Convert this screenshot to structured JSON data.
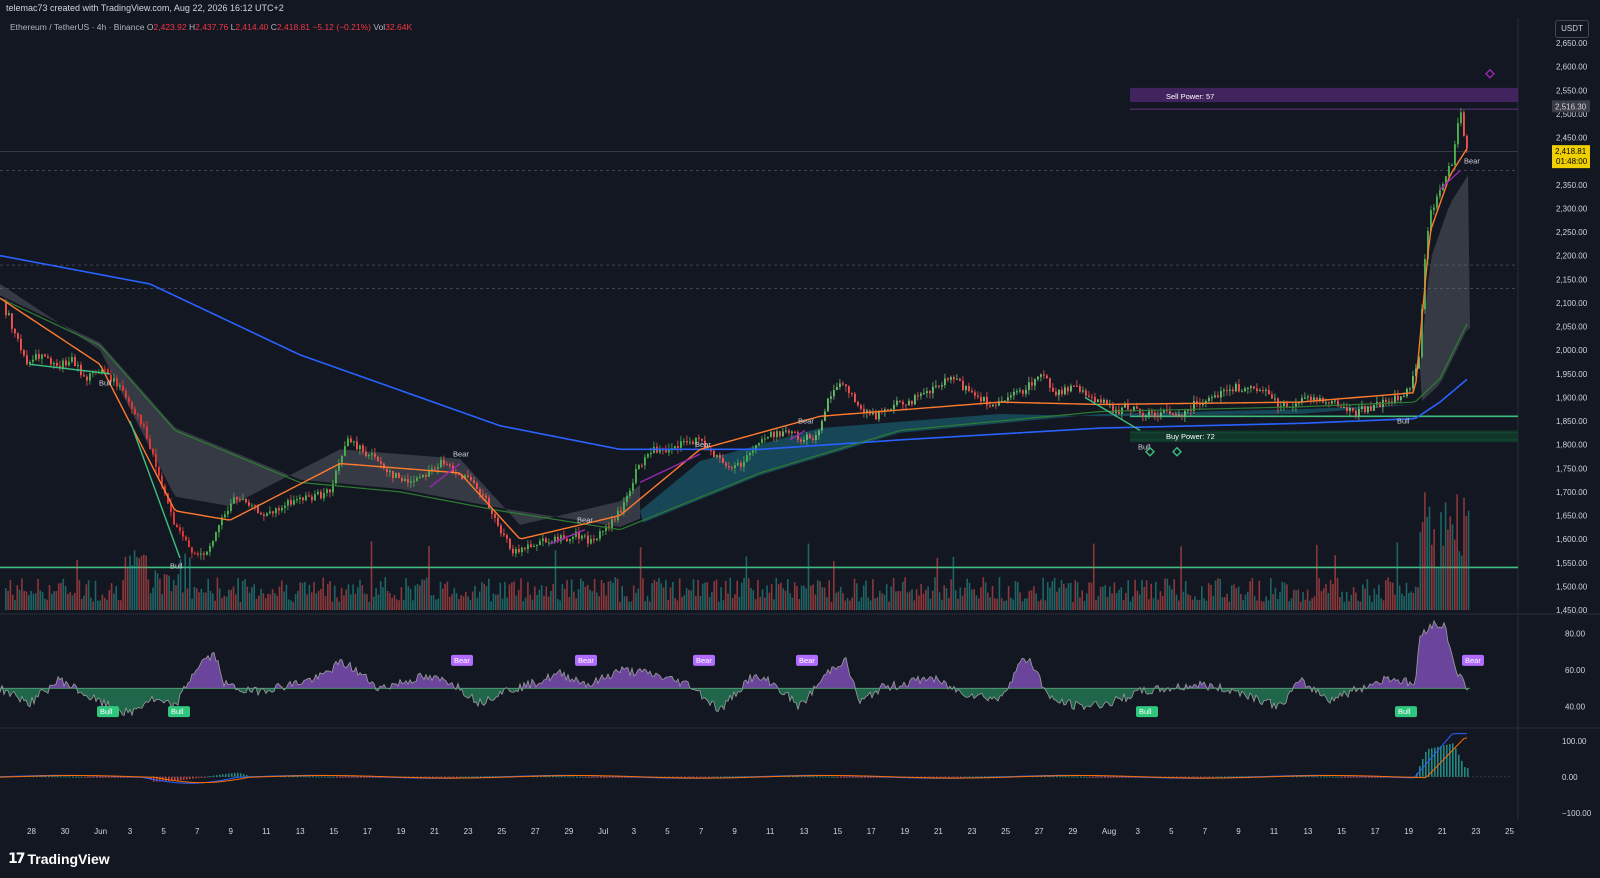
{
  "header": {
    "credit": "telemac73 created with TradingView.com, Aug 22, 2026 16:12 UTC+2"
  },
  "symbol": {
    "name": "Ethereum / TetherUS · 4h · Binance",
    "open_label": "O",
    "open": "2,423.92",
    "high_label": "H",
    "high": "2,437.76",
    "low_label": "L",
    "low": "2,414.40",
    "close_label": "C",
    "close": "2,418.81",
    "change": "−5.12 (−0.21%)",
    "vol_label": "Vol",
    "vol": "32.64K",
    "currency": "USDT"
  },
  "colors": {
    "background": "#131722",
    "bull": "#26a69a",
    "bear": "#ef5350",
    "ema_fast": "#ff7b2e",
    "ema_mid": "#2e7d32",
    "ema_slow": "#2962ff",
    "purple": "#9c27b0",
    "highlight": "#f0d000"
  },
  "annotations": {
    "sell_power": "Sell Power: 57",
    "buy_power": "Buy Power: 72",
    "bull": "Bull",
    "bear": "Bear"
  },
  "price_badges": {
    "last_high": "2,516.30",
    "current": "2,418.81",
    "countdown": "01:48:00"
  },
  "footer": {
    "brand": "TradingView"
  },
  "chart_data": [
    {
      "type": "candlestick",
      "pane": "price",
      "y_ticks": [
        "2,650.00",
        "2,600.00",
        "2,550.00",
        "2,500.00",
        "2,450.00",
        "2,400.00",
        "2,350.00",
        "2,300.00",
        "2,250.00",
        "2,200.00",
        "2,150.00",
        "2,100.00",
        "2,050.00",
        "2,000.00",
        "1,950.00",
        "1,900.00",
        "1,850.00",
        "1,800.00",
        "1,750.00",
        "1,700.00",
        "1,650.00",
        "1,600.00",
        "1,550.00",
        "1,500.00",
        "1,450.00"
      ],
      "ylim": [
        1450,
        2650
      ],
      "x_ticks": [
        "28",
        "30",
        "Jun",
        "3",
        "5",
        "7",
        "9",
        "11",
        "13",
        "15",
        "17",
        "19",
        "21",
        "23",
        "25",
        "27",
        "29",
        "Jul",
        "3",
        "5",
        "7",
        "9",
        "11",
        "13",
        "15",
        "17",
        "19",
        "21",
        "23",
        "25",
        "27",
        "29",
        "Aug",
        "3",
        "5",
        "7",
        "9",
        "11",
        "13",
        "15",
        "17",
        "19",
        "21",
        "23",
        "25"
      ],
      "anchors": [
        [
          0,
          2105
        ],
        [
          10,
          2060
        ],
        [
          25,
          1970
        ],
        [
          40,
          1990
        ],
        [
          55,
          1960
        ],
        [
          70,
          1980
        ],
        [
          85,
          1940
        ],
        [
          100,
          1960
        ],
        [
          120,
          1920
        ],
        [
          140,
          1850
        ],
        [
          160,
          1720
        ],
        [
          175,
          1620
        ],
        [
          190,
          1580
        ],
        [
          205,
          1560
        ],
        [
          220,
          1640
        ],
        [
          235,
          1690
        ],
        [
          250,
          1665
        ],
        [
          270,
          1650
        ],
        [
          290,
          1680
        ],
        [
          310,
          1690
        ],
        [
          330,
          1700
        ],
        [
          345,
          1810
        ],
        [
          360,
          1790
        ],
        [
          375,
          1770
        ],
        [
          390,
          1740
        ],
        [
          405,
          1720
        ],
        [
          420,
          1735
        ],
        [
          440,
          1760
        ],
        [
          455,
          1745
        ],
        [
          470,
          1720
        ],
        [
          485,
          1680
        ],
        [
          500,
          1610
        ],
        [
          515,
          1570
        ],
        [
          530,
          1590
        ],
        [
          545,
          1600
        ],
        [
          560,
          1600
        ],
        [
          575,
          1610
        ],
        [
          590,
          1595
        ],
        [
          605,
          1620
        ],
        [
          620,
          1660
        ],
        [
          635,
          1740
        ],
        [
          650,
          1790
        ],
        [
          665,
          1780
        ],
        [
          680,
          1800
        ],
        [
          695,
          1810
        ],
        [
          710,
          1790
        ],
        [
          725,
          1750
        ],
        [
          740,
          1760
        ],
        [
          755,
          1800
        ],
        [
          770,
          1820
        ],
        [
          785,
          1830
        ],
        [
          800,
          1810
        ],
        [
          815,
          1820
        ],
        [
          830,
          1910
        ],
        [
          845,
          1930
        ],
        [
          860,
          1870
        ],
        [
          875,
          1860
        ],
        [
          890,
          1880
        ],
        [
          905,
          1890
        ],
        [
          920,
          1900
        ],
        [
          935,
          1920
        ],
        [
          950,
          1940
        ],
        [
          965,
          1920
        ],
        [
          980,
          1900
        ],
        [
          995,
          1880
        ],
        [
          1010,
          1900
        ],
        [
          1025,
          1920
        ],
        [
          1040,
          1950
        ],
        [
          1055,
          1910
        ],
        [
          1070,
          1920
        ],
        [
          1085,
          1910
        ],
        [
          1100,
          1890
        ],
        [
          1115,
          1870
        ],
        [
          1130,
          1880
        ],
        [
          1145,
          1860
        ],
        [
          1160,
          1870
        ],
        [
          1175,
          1860
        ],
        [
          1190,
          1880
        ],
        [
          1205,
          1900
        ],
        [
          1220,
          1910
        ],
        [
          1235,
          1920
        ],
        [
          1250,
          1915
        ],
        [
          1265,
          1910
        ],
        [
          1280,
          1880
        ],
        [
          1295,
          1890
        ],
        [
          1310,
          1900
        ],
        [
          1325,
          1895
        ],
        [
          1340,
          1880
        ],
        [
          1355,
          1870
        ],
        [
          1370,
          1880
        ],
        [
          1385,
          1890
        ],
        [
          1400,
          1900
        ],
        [
          1410,
          1920
        ],
        [
          1418,
          1990
        ],
        [
          1424,
          2200
        ],
        [
          1430,
          2290
        ],
        [
          1438,
          2330
        ],
        [
          1446,
          2380
        ],
        [
          1452,
          2400
        ],
        [
          1456,
          2480
        ],
        [
          1460,
          2505
        ],
        [
          1464,
          2440
        ],
        [
          1468,
          2418
        ]
      ],
      "ema_fast": [
        [
          0,
          2110
        ],
        [
          100,
          1970
        ],
        [
          175,
          1660
        ],
        [
          230,
          1640
        ],
        [
          340,
          1760
        ],
        [
          460,
          1740
        ],
        [
          520,
          1600
        ],
        [
          620,
          1650
        ],
        [
          700,
          1790
        ],
        [
          820,
          1860
        ],
        [
          1000,
          1890
        ],
        [
          1100,
          1885
        ],
        [
          1300,
          1890
        ],
        [
          1415,
          1910
        ],
        [
          1430,
          2250
        ],
        [
          1450,
          2370
        ],
        [
          1468,
          2430
        ]
      ],
      "ema_mid": [
        [
          0,
          2110
        ],
        [
          100,
          2010
        ],
        [
          175,
          1830
        ],
        [
          300,
          1720
        ],
        [
          400,
          1700
        ],
        [
          500,
          1660
        ],
        [
          620,
          1620
        ],
        [
          760,
          1740
        ],
        [
          900,
          1830
        ],
        [
          1100,
          1870
        ],
        [
          1300,
          1880
        ],
        [
          1415,
          1890
        ],
        [
          1440,
          1940
        ],
        [
          1468,
          2060
        ]
      ],
      "ema_slow": [
        [
          0,
          2200
        ],
        [
          150,
          2140
        ],
        [
          300,
          1990
        ],
        [
          500,
          1840
        ],
        [
          620,
          1790
        ],
        [
          760,
          1790
        ],
        [
          900,
          1810
        ],
        [
          1100,
          1835
        ],
        [
          1300,
          1845
        ],
        [
          1415,
          1855
        ],
        [
          1440,
          1890
        ],
        [
          1468,
          1940
        ]
      ],
      "levels": [
        2510,
        2420,
        2380,
        2180,
        2130,
        1860,
        1825,
        1810,
        1540
      ]
    },
    {
      "type": "area",
      "pane": "rsi",
      "y_ticks": [
        "80.00",
        "60.00",
        "40.00"
      ],
      "ylim": [
        30,
        90
      ],
      "midline": 50,
      "anchors": [
        [
          0,
          50
        ],
        [
          30,
          42
        ],
        [
          60,
          55
        ],
        [
          90,
          45
        ],
        [
          110,
          40
        ],
        [
          130,
          36
        ],
        [
          150,
          44
        ],
        [
          175,
          40
        ],
        [
          195,
          60
        ],
        [
          205,
          66
        ],
        [
          215,
          68
        ],
        [
          225,
          52
        ],
        [
          250,
          48
        ],
        [
          290,
          52
        ],
        [
          320,
          56
        ],
        [
          340,
          64
        ],
        [
          350,
          62
        ],
        [
          380,
          50
        ],
        [
          420,
          56
        ],
        [
          450,
          54
        ],
        [
          480,
          42
        ],
        [
          500,
          48
        ],
        [
          530,
          52
        ],
        [
          560,
          58
        ],
        [
          590,
          52
        ],
        [
          620,
          60
        ],
        [
          650,
          58
        ],
        [
          690,
          52
        ],
        [
          720,
          38
        ],
        [
          750,
          56
        ],
        [
          770,
          54
        ],
        [
          800,
          40
        ],
        [
          830,
          60
        ],
        [
          845,
          66
        ],
        [
          860,
          42
        ],
        [
          880,
          50
        ],
        [
          900,
          52
        ],
        [
          930,
          56
        ],
        [
          960,
          48
        ],
        [
          1000,
          44
        ],
        [
          1020,
          64
        ],
        [
          1030,
          66
        ],
        [
          1050,
          44
        ],
        [
          1080,
          40
        ],
        [
          1110,
          42
        ],
        [
          1140,
          48
        ],
        [
          1170,
          50
        ],
        [
          1200,
          52
        ],
        [
          1240,
          48
        ],
        [
          1280,
          40
        ],
        [
          1300,
          54
        ],
        [
          1330,
          44
        ],
        [
          1360,
          50
        ],
        [
          1390,
          56
        ],
        [
          1415,
          52
        ],
        [
          1420,
          78
        ],
        [
          1430,
          85
        ],
        [
          1445,
          84
        ],
        [
          1455,
          62
        ],
        [
          1468,
          48
        ]
      ],
      "labels": [
        {
          "text": "Bull",
          "x": 107
        },
        {
          "text": "Bull",
          "x": 178
        },
        {
          "text": "Bear",
          "x": 461
        },
        {
          "text": "Bear",
          "x": 585
        },
        {
          "text": "Bear",
          "x": 703
        },
        {
          "text": "Bear",
          "x": 806
        },
        {
          "text": "Bull",
          "x": 1146
        },
        {
          "text": "Bull",
          "x": 1405
        },
        {
          "text": "Bear",
          "x": 1472
        }
      ]
    },
    {
      "type": "line",
      "pane": "macd",
      "y_ticks": [
        "100.00",
        "0.00",
        "−100.00"
      ],
      "ylim": [
        -120,
        130
      ]
    }
  ]
}
